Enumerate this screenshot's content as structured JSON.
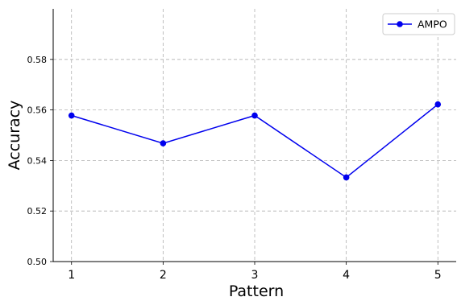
{
  "chart_data": {
    "type": "line",
    "title": "",
    "xlabel": "Pattern",
    "ylabel": "Accuracy",
    "categories": [
      "1",
      "2",
      "3",
      "4",
      "5"
    ],
    "x": [
      1,
      2,
      3,
      4,
      5
    ],
    "xlim": [
      0.8,
      5.2
    ],
    "ylim": [
      0.5,
      0.6
    ],
    "yticks": [
      0.5,
      0.52,
      0.54,
      0.56,
      0.58
    ],
    "ytick_labels": [
      "0.50",
      "0.52",
      "0.54",
      "0.56",
      "0.58"
    ],
    "grid": true,
    "legend_position": "top-right",
    "series": [
      {
        "name": "AMPO",
        "color": "#0000ee",
        "marker": "circle",
        "values": [
          0.5578,
          0.5468,
          0.5578,
          0.5333,
          0.5622
        ]
      }
    ]
  }
}
